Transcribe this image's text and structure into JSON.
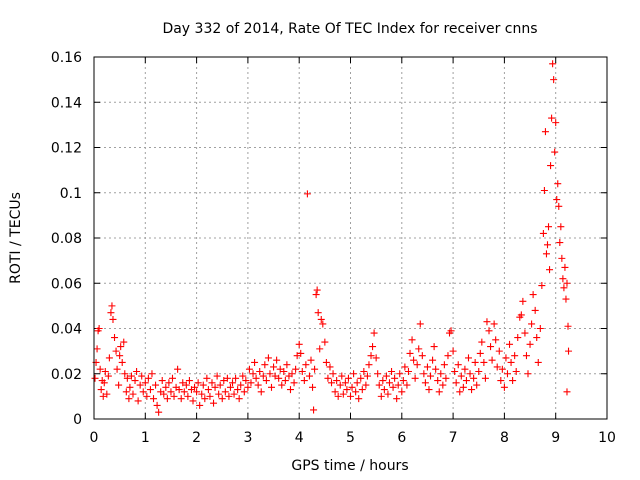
{
  "chart_data": {
    "type": "scatter",
    "title": "Day 332 of 2014, Rate Of TEC Index for receiver cnns",
    "xlabel": "GPS time / hours",
    "ylabel": "ROTI / TECUs",
    "xlim": [
      0,
      10
    ],
    "ylim": [
      0,
      0.16
    ],
    "grid": true,
    "marker": "+",
    "color": "#ff0000",
    "x_ticks": [
      {
        "value": 0,
        "label": "0"
      },
      {
        "value": 1,
        "label": "1"
      },
      {
        "value": 2,
        "label": "2"
      },
      {
        "value": 3,
        "label": "3"
      },
      {
        "value": 4,
        "label": "4"
      },
      {
        "value": 5,
        "label": "5"
      },
      {
        "value": 6,
        "label": "6"
      },
      {
        "value": 7,
        "label": "7"
      },
      {
        "value": 8,
        "label": "8"
      },
      {
        "value": 9,
        "label": "9"
      },
      {
        "value": 10,
        "label": "10"
      }
    ],
    "y_ticks": [
      {
        "value": 0,
        "label": "0"
      },
      {
        "value": 0.02,
        "label": "0.02"
      },
      {
        "value": 0.04,
        "label": "0.04"
      },
      {
        "value": 0.06,
        "label": "0.06"
      },
      {
        "value": 0.08,
        "label": "0.08"
      },
      {
        "value": 0.1,
        "label": "0.1"
      },
      {
        "value": 0.12,
        "label": "0.12"
      },
      {
        "value": 0.14,
        "label": "0.14"
      },
      {
        "value": 0.16,
        "label": "0.16"
      }
    ],
    "series": [
      {
        "name": "ROTI",
        "points": [
          [
            0.02,
            0.018
          ],
          [
            0.04,
            0.025
          ],
          [
            0.06,
            0.031
          ],
          [
            0.08,
            0.039
          ],
          [
            0.1,
            0.04
          ],
          [
            0.12,
            0.022
          ],
          [
            0.14,
            0.013
          ],
          [
            0.16,
            0.017
          ],
          [
            0.18,
            0.01
          ],
          [
            0.2,
            0.016
          ],
          [
            0.22,
            0.021
          ],
          [
            0.25,
            0.011
          ],
          [
            0.28,
            0.019
          ],
          [
            0.3,
            0.027
          ],
          [
            0.33,
            0.047
          ],
          [
            0.35,
            0.05
          ],
          [
            0.37,
            0.044
          ],
          [
            0.4,
            0.036
          ],
          [
            0.43,
            0.03
          ],
          [
            0.45,
            0.022
          ],
          [
            0.48,
            0.015
          ],
          [
            0.5,
            0.028
          ],
          [
            0.52,
            0.032
          ],
          [
            0.55,
            0.025
          ],
          [
            0.58,
            0.034
          ],
          [
            0.6,
            0.02
          ],
          [
            0.63,
            0.012
          ],
          [
            0.65,
            0.018
          ],
          [
            0.68,
            0.009
          ],
          [
            0.7,
            0.014
          ],
          [
            0.73,
            0.019
          ],
          [
            0.76,
            0.011
          ],
          [
            0.8,
            0.017
          ],
          [
            0.83,
            0.021
          ],
          [
            0.86,
            0.008
          ],
          [
            0.9,
            0.015
          ],
          [
            0.93,
            0.019
          ],
          [
            0.96,
            0.012
          ],
          [
            1.0,
            0.016
          ],
          [
            1.03,
            0.01
          ],
          [
            1.06,
            0.018
          ],
          [
            1.1,
            0.013
          ],
          [
            1.13,
            0.02
          ],
          [
            1.16,
            0.009
          ],
          [
            1.2,
            0.015
          ],
          [
            1.23,
            0.006
          ],
          [
            1.26,
            0.003
          ],
          [
            1.3,
            0.012
          ],
          [
            1.33,
            0.017
          ],
          [
            1.36,
            0.011
          ],
          [
            1.4,
            0.014
          ],
          [
            1.43,
            0.009
          ],
          [
            1.46,
            0.016
          ],
          [
            1.5,
            0.012
          ],
          [
            1.53,
            0.018
          ],
          [
            1.56,
            0.01
          ],
          [
            1.6,
            0.014
          ],
          [
            1.63,
            0.022
          ],
          [
            1.66,
            0.013
          ],
          [
            1.7,
            0.009
          ],
          [
            1.73,
            0.016
          ],
          [
            1.76,
            0.012
          ],
          [
            1.8,
            0.015
          ],
          [
            1.83,
            0.01
          ],
          [
            1.86,
            0.017
          ],
          [
            1.9,
            0.013
          ],
          [
            1.93,
            0.008
          ],
          [
            1.96,
            0.014
          ],
          [
            2.0,
            0.012
          ],
          [
            2.03,
            0.016
          ],
          [
            2.06,
            0.006
          ],
          [
            2.1,
            0.011
          ],
          [
            2.13,
            0.015
          ],
          [
            2.16,
            0.009
          ],
          [
            2.2,
            0.018
          ],
          [
            2.23,
            0.013
          ],
          [
            2.26,
            0.01
          ],
          [
            2.3,
            0.016
          ],
          [
            2.33,
            0.007
          ],
          [
            2.36,
            0.014
          ],
          [
            2.4,
            0.019
          ],
          [
            2.43,
            0.011
          ],
          [
            2.46,
            0.015
          ],
          [
            2.5,
            0.009
          ],
          [
            2.53,
            0.017
          ],
          [
            2.56,
            0.012
          ],
          [
            2.6,
            0.018
          ],
          [
            2.63,
            0.01
          ],
          [
            2.66,
            0.014
          ],
          [
            2.7,
            0.016
          ],
          [
            2.73,
            0.011
          ],
          [
            2.76,
            0.018
          ],
          [
            2.8,
            0.013
          ],
          [
            2.83,
            0.009
          ],
          [
            2.86,
            0.015
          ],
          [
            2.9,
            0.019
          ],
          [
            2.93,
            0.012
          ],
          [
            2.96,
            0.017
          ],
          [
            3.0,
            0.014
          ],
          [
            3.03,
            0.022
          ],
          [
            3.06,
            0.016
          ],
          [
            3.1,
            0.02
          ],
          [
            3.13,
            0.025
          ],
          [
            3.16,
            0.018
          ],
          [
            3.2,
            0.015
          ],
          [
            3.23,
            0.021
          ],
          [
            3.26,
            0.012
          ],
          [
            3.3,
            0.019
          ],
          [
            3.33,
            0.024
          ],
          [
            3.36,
            0.017
          ],
          [
            3.4,
            0.027
          ],
          [
            3.43,
            0.02
          ],
          [
            3.46,
            0.014
          ],
          [
            3.5,
            0.023
          ],
          [
            3.53,
            0.019
          ],
          [
            3.56,
            0.026
          ],
          [
            3.6,
            0.018
          ],
          [
            3.63,
            0.022
          ],
          [
            3.66,
            0.015
          ],
          [
            3.7,
            0.021
          ],
          [
            3.73,
            0.017
          ],
          [
            3.76,
            0.024
          ],
          [
            3.8,
            0.019
          ],
          [
            3.83,
            0.013
          ],
          [
            3.86,
            0.02
          ],
          [
            3.9,
            0.016
          ],
          [
            3.93,
            0.022
          ],
          [
            3.96,
            0.028
          ],
          [
            4.0,
            0.033
          ],
          [
            4.03,
            0.029
          ],
          [
            4.06,
            0.021
          ],
          [
            4.1,
            0.017
          ],
          [
            4.13,
            0.024
          ],
          [
            4.16,
            0.0995
          ],
          [
            4.2,
            0.019
          ],
          [
            4.23,
            0.026
          ],
          [
            4.26,
            0.014
          ],
          [
            4.28,
            0.004
          ],
          [
            4.3,
            0.022
          ],
          [
            4.33,
            0.055
          ],
          [
            4.35,
            0.057
          ],
          [
            4.37,
            0.047
          ],
          [
            4.4,
            0.031
          ],
          [
            4.43,
            0.044
          ],
          [
            4.46,
            0.042
          ],
          [
            4.5,
            0.034
          ],
          [
            4.53,
            0.025
          ],
          [
            4.56,
            0.018
          ],
          [
            4.6,
            0.023
          ],
          [
            4.63,
            0.016
          ],
          [
            4.66,
            0.02
          ],
          [
            4.7,
            0.012
          ],
          [
            4.73,
            0.017
          ],
          [
            4.76,
            0.01
          ],
          [
            4.8,
            0.015
          ],
          [
            4.83,
            0.019
          ],
          [
            4.86,
            0.011
          ],
          [
            4.9,
            0.016
          ],
          [
            4.93,
            0.013
          ],
          [
            4.96,
            0.018
          ],
          [
            5.0,
            0.01
          ],
          [
            5.03,
            0.014
          ],
          [
            5.06,
            0.02
          ],
          [
            5.1,
            0.012
          ],
          [
            5.13,
            0.016
          ],
          [
            5.16,
            0.009
          ],
          [
            5.2,
            0.018
          ],
          [
            5.23,
            0.013
          ],
          [
            5.26,
            0.021
          ],
          [
            5.3,
            0.015
          ],
          [
            5.33,
            0.019
          ],
          [
            5.36,
            0.024
          ],
          [
            5.4,
            0.028
          ],
          [
            5.43,
            0.032
          ],
          [
            5.46,
            0.038
          ],
          [
            5.5,
            0.027
          ],
          [
            5.53,
            0.02
          ],
          [
            5.56,
            0.015
          ],
          [
            5.6,
            0.01
          ],
          [
            5.63,
            0.017
          ],
          [
            5.66,
            0.013
          ],
          [
            5.7,
            0.019
          ],
          [
            5.73,
            0.011
          ],
          [
            5.76,
            0.016
          ],
          [
            5.8,
            0.021
          ],
          [
            5.83,
            0.014
          ],
          [
            5.86,
            0.018
          ],
          [
            5.9,
            0.009
          ],
          [
            5.93,
            0.015
          ],
          [
            5.96,
            0.02
          ],
          [
            6.0,
            0.012
          ],
          [
            6.03,
            0.017
          ],
          [
            6.06,
            0.023
          ],
          [
            6.1,
            0.015
          ],
          [
            6.13,
            0.021
          ],
          [
            6.16,
            0.029
          ],
          [
            6.2,
            0.035
          ],
          [
            6.23,
            0.026
          ],
          [
            6.26,
            0.018
          ],
          [
            6.3,
            0.024
          ],
          [
            6.33,
            0.031
          ],
          [
            6.36,
            0.042
          ],
          [
            6.4,
            0.028
          ],
          [
            6.43,
            0.02
          ],
          [
            6.46,
            0.016
          ],
          [
            6.5,
            0.023
          ],
          [
            6.53,
            0.013
          ],
          [
            6.56,
            0.019
          ],
          [
            6.6,
            0.026
          ],
          [
            6.63,
            0.032
          ],
          [
            6.66,
            0.022
          ],
          [
            6.7,
            0.017
          ],
          [
            6.73,
            0.012
          ],
          [
            6.76,
            0.02
          ],
          [
            6.8,
            0.015
          ],
          [
            6.83,
            0.024
          ],
          [
            6.86,
            0.018
          ],
          [
            6.9,
            0.028
          ],
          [
            6.93,
            0.038
          ],
          [
            6.96,
            0.039
          ],
          [
            7.0,
            0.03
          ],
          [
            7.03,
            0.021
          ],
          [
            7.06,
            0.016
          ],
          [
            7.1,
            0.024
          ],
          [
            7.13,
            0.012
          ],
          [
            7.16,
            0.019
          ],
          [
            7.2,
            0.014
          ],
          [
            7.23,
            0.022
          ],
          [
            7.26,
            0.017
          ],
          [
            7.3,
            0.027
          ],
          [
            7.33,
            0.02
          ],
          [
            7.36,
            0.013
          ],
          [
            7.4,
            0.018
          ],
          [
            7.43,
            0.025
          ],
          [
            7.46,
            0.015
          ],
          [
            7.5,
            0.021
          ],
          [
            7.53,
            0.029
          ],
          [
            7.56,
            0.034
          ],
          [
            7.6,
            0.025
          ],
          [
            7.63,
            0.018
          ],
          [
            7.66,
            0.043
          ],
          [
            7.7,
            0.039
          ],
          [
            7.73,
            0.032
          ],
          [
            7.76,
            0.026
          ],
          [
            7.8,
            0.042
          ],
          [
            7.83,
            0.035
          ],
          [
            7.86,
            0.023
          ],
          [
            7.9,
            0.03
          ],
          [
            7.93,
            0.017
          ],
          [
            7.96,
            0.022
          ],
          [
            8.0,
            0.014
          ],
          [
            8.03,
            0.027
          ],
          [
            8.06,
            0.02
          ],
          [
            8.1,
            0.033
          ],
          [
            8.13,
            0.025
          ],
          [
            8.16,
            0.017
          ],
          [
            8.2,
            0.028
          ],
          [
            8.23,
            0.021
          ],
          [
            8.26,
            0.036
          ],
          [
            8.3,
            0.045
          ],
          [
            8.33,
            0.046
          ],
          [
            8.36,
            0.052
          ],
          [
            8.4,
            0.038
          ],
          [
            8.43,
            0.028
          ],
          [
            8.46,
            0.02
          ],
          [
            8.5,
            0.033
          ],
          [
            8.53,
            0.042
          ],
          [
            8.56,
            0.055
          ],
          [
            8.6,
            0.048
          ],
          [
            8.63,
            0.036
          ],
          [
            8.66,
            0.025
          ],
          [
            8.7,
            0.04
          ],
          [
            8.73,
            0.059
          ],
          [
            8.76,
            0.082
          ],
          [
            8.78,
            0.101
          ],
          [
            8.8,
            0.127
          ],
          [
            8.82,
            0.073
          ],
          [
            8.84,
            0.077
          ],
          [
            8.86,
            0.085
          ],
          [
            8.88,
            0.066
          ],
          [
            8.9,
            0.112
          ],
          [
            8.92,
            0.133
          ],
          [
            8.94,
            0.157
          ],
          [
            8.96,
            0.15
          ],
          [
            8.98,
            0.118
          ],
          [
            9.0,
            0.131
          ],
          [
            9.02,
            0.097
          ],
          [
            9.04,
            0.104
          ],
          [
            9.06,
            0.094
          ],
          [
            9.08,
            0.078
          ],
          [
            9.1,
            0.085
          ],
          [
            9.12,
            0.071
          ],
          [
            9.14,
            0.062
          ],
          [
            9.16,
            0.058
          ],
          [
            9.18,
            0.067
          ],
          [
            9.2,
            0.053
          ],
          [
            9.22,
            0.06
          ],
          [
            9.24,
            0.041
          ],
          [
            9.25,
            0.03
          ],
          [
            9.22,
            0.012
          ]
        ]
      }
    ]
  }
}
